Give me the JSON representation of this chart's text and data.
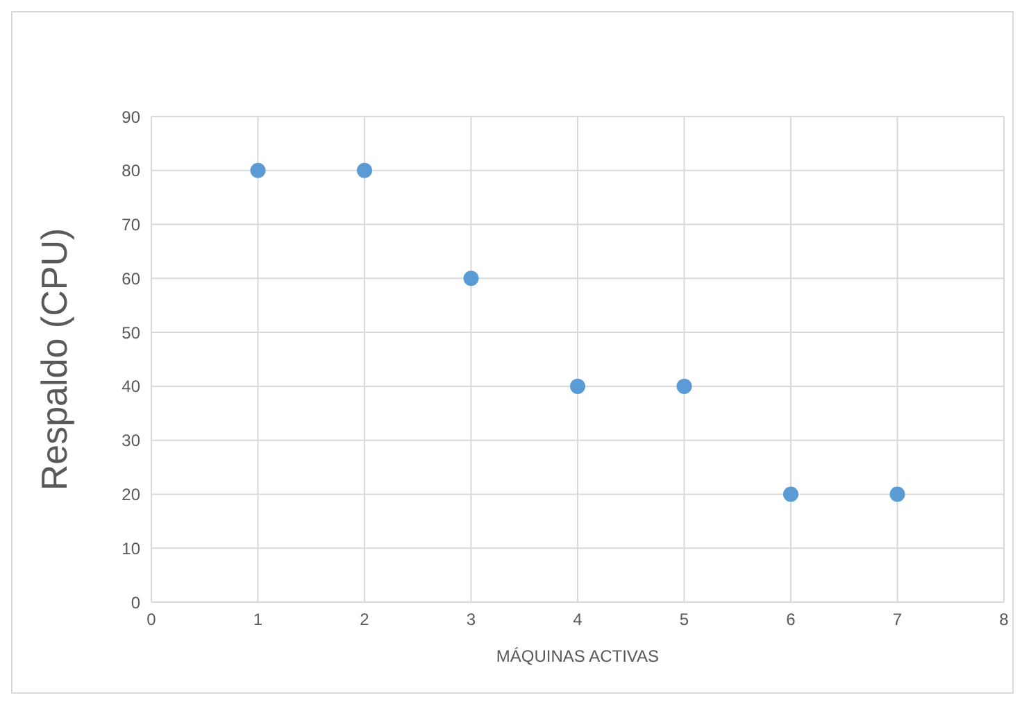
{
  "chart_data": {
    "type": "scatter",
    "xlabel": "MÁQUINAS ACTIVAS",
    "ylabel": "Respaldo (CPU)",
    "x": [
      1,
      2,
      3,
      4,
      5,
      6,
      7
    ],
    "values": [
      80,
      80,
      60,
      40,
      40,
      20,
      20
    ],
    "color": "#5b9bd5",
    "marker": "circle",
    "xlim": [
      0,
      8
    ],
    "xticks": [
      0,
      1,
      2,
      3,
      4,
      5,
      6,
      7,
      8
    ],
    "ylim": [
      0,
      90
    ],
    "yticks": [
      0,
      10,
      20,
      30,
      40,
      50,
      60,
      70,
      80,
      90
    ],
    "grid": true
  }
}
